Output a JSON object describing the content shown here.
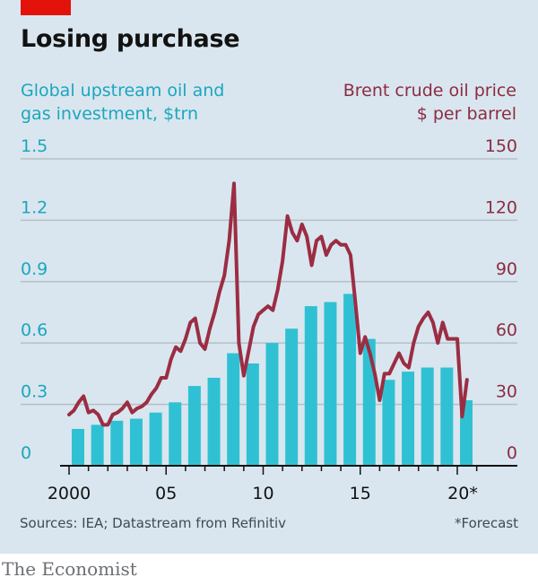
{
  "header": {
    "title": "Losing purchase",
    "left_axis_title_line1": "Global upstream oil and",
    "left_axis_title_line2": "gas investment, $trn",
    "right_axis_title_line1": "Brent crude oil price",
    "right_axis_title_line2": "$ per barrel"
  },
  "footer": {
    "source": "Sources: IEA; Datastream from Refinitiv",
    "note": "*Forecast",
    "brand": "The Economist"
  },
  "colors": {
    "investment": "#2fc1d3",
    "brent": "#9b2d43",
    "left_axis": "#1ba6bd",
    "right_axis": "#8c2c41",
    "background": "#d9e6ef",
    "gridline": "#b5bfc6",
    "accent": "#e3120b"
  },
  "chart_data": {
    "type": "bar",
    "title": "Losing purchase",
    "xlabel": "",
    "x_ticks": [
      "2000",
      "05",
      "10",
      "15",
      "20*"
    ],
    "x_tick_years": [
      2000,
      2005,
      2010,
      2015,
      2020
    ],
    "xlim": [
      2000,
      2021
    ],
    "grid": true,
    "series": [
      {
        "name": "Global upstream oil and gas investment, $trn",
        "type": "bar",
        "axis": "left",
        "ylim": [
          0,
          1.5
        ],
        "y_ticks": [
          "0",
          "0.3",
          "0.6",
          "0.9",
          "1.2",
          "1.5"
        ],
        "y_tick_values": [
          0,
          0.3,
          0.6,
          0.9,
          1.2,
          1.5
        ],
        "categories": [
          2000,
          2001,
          2002,
          2003,
          2004,
          2005,
          2006,
          2007,
          2008,
          2009,
          2010,
          2011,
          2012,
          2013,
          2014,
          2015,
          2016,
          2017,
          2018,
          2019,
          2020
        ],
        "values": [
          0.18,
          0.2,
          0.22,
          0.23,
          0.26,
          0.31,
          0.39,
          0.43,
          0.55,
          0.5,
          0.6,
          0.67,
          0.78,
          0.8,
          0.84,
          0.62,
          0.42,
          0.46,
          0.48,
          0.48,
          0.32
        ]
      },
      {
        "name": "Brent crude oil price, $ per barrel",
        "type": "line",
        "axis": "right",
        "ylim": [
          0,
          150
        ],
        "y_ticks": [
          "0",
          "30",
          "60",
          "90",
          "120",
          "150"
        ],
        "y_tick_values": [
          0,
          30,
          60,
          90,
          120,
          150
        ],
        "x": [
          2000.0,
          2000.25,
          2000.5,
          2000.75,
          2001.0,
          2001.25,
          2001.5,
          2001.75,
          2002.0,
          2002.25,
          2002.5,
          2002.75,
          2003.0,
          2003.25,
          2003.5,
          2003.75,
          2004.0,
          2004.25,
          2004.5,
          2004.75,
          2005.0,
          2005.25,
          2005.5,
          2005.75,
          2006.0,
          2006.25,
          2006.5,
          2006.75,
          2007.0,
          2007.25,
          2007.5,
          2007.75,
          2008.0,
          2008.25,
          2008.5,
          2008.75,
          2009.0,
          2009.25,
          2009.5,
          2009.75,
          2010.0,
          2010.25,
          2010.5,
          2010.75,
          2011.0,
          2011.25,
          2011.5,
          2011.75,
          2012.0,
          2012.25,
          2012.5,
          2012.75,
          2013.0,
          2013.25,
          2013.5,
          2013.75,
          2014.0,
          2014.25,
          2014.5,
          2014.75,
          2015.0,
          2015.25,
          2015.5,
          2015.75,
          2016.0,
          2016.25,
          2016.5,
          2016.75,
          2017.0,
          2017.25,
          2017.5,
          2017.75,
          2018.0,
          2018.25,
          2018.5,
          2018.75,
          2019.0,
          2019.25,
          2019.5,
          2019.75,
          2020.0,
          2020.25,
          2020.5
        ],
        "values": [
          25,
          27,
          31,
          34,
          26,
          27,
          25,
          20,
          20,
          25,
          26,
          28,
          31,
          26,
          28,
          29,
          31,
          35,
          38,
          43,
          43,
          52,
          58,
          56,
          62,
          70,
          72,
          60,
          57,
          67,
          75,
          85,
          93,
          110,
          138,
          60,
          44,
          56,
          68,
          74,
          76,
          78,
          76,
          86,
          100,
          122,
          114,
          110,
          118,
          112,
          98,
          110,
          112,
          103,
          108,
          110,
          108,
          108,
          103,
          80,
          55,
          63,
          55,
          45,
          32,
          45,
          45,
          50,
          55,
          50,
          48,
          60,
          68,
          72,
          75,
          70,
          60,
          70,
          62,
          62,
          62,
          24,
          42
        ]
      }
    ]
  }
}
